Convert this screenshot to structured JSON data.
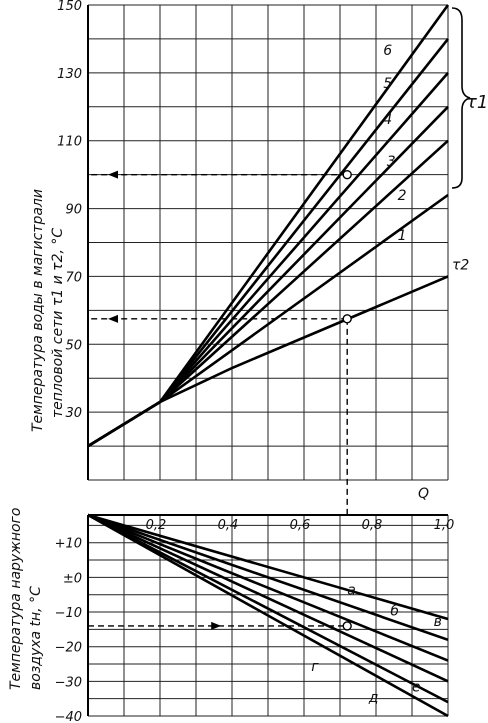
{
  "chart_data": [
    {
      "type": "line",
      "ylabel_line1": "Температура воды в магистрали",
      "ylabel_line2": "тепловой сети τ1 и τ2, °С",
      "xlim": [
        0,
        1.0
      ],
      "ylim": [
        10,
        150
      ],
      "yticks": [
        30,
        50,
        70,
        90,
        110,
        130,
        150
      ],
      "series": [
        {
          "name": "1",
          "x": [
            0,
            0.2,
            1.0
          ],
          "y": [
            20,
            33,
            94
          ]
        },
        {
          "name": "2",
          "x": [
            0,
            0.2,
            1.0
          ],
          "y": [
            20,
            33,
            110
          ]
        },
        {
          "name": "3",
          "x": [
            0,
            0.2,
            1.0
          ],
          "y": [
            20,
            33,
            120
          ]
        },
        {
          "name": "4",
          "x": [
            0,
            0.2,
            1.0
          ],
          "y": [
            20,
            33,
            130
          ]
        },
        {
          "name": "5",
          "x": [
            0,
            0.2,
            1.0
          ],
          "y": [
            20,
            33,
            140
          ]
        },
        {
          "name": "6",
          "x": [
            0,
            0.2,
            1.0
          ],
          "y": [
            20,
            33,
            150
          ]
        },
        {
          "name": "τ2",
          "x": [
            0,
            0.2,
            0.4,
            0.6,
            0.8,
            1.0
          ],
          "y": [
            20,
            33,
            43,
            52,
            61,
            70
          ]
        }
      ],
      "group_label": "τ1",
      "reference": {
        "x": 0.72,
        "y_tau1": 100,
        "y_tau2": 57.5
      }
    },
    {
      "type": "line",
      "ylabel_line1": "Температура наружного",
      "ylabel_line2": "воздуха tн, °С",
      "xlabel": "Q",
      "xlim": [
        0,
        1.0
      ],
      "ylim": [
        -40,
        18
      ],
      "xticks": [
        "0,2",
        "0,4",
        "0,6",
        "0,8",
        "1,0"
      ],
      "yticks": [
        "+10",
        "±0",
        "−10",
        "−20",
        "−30",
        "−40"
      ],
      "ytick_values": [
        10,
        0,
        -10,
        -20,
        -30,
        -40
      ],
      "series": [
        {
          "name": "а",
          "x": [
            0,
            1.0
          ],
          "y": [
            18,
            -12
          ]
        },
        {
          "name": "б",
          "x": [
            0,
            1.0
          ],
          "y": [
            18,
            -18
          ]
        },
        {
          "name": "в",
          "x": [
            0,
            1.0
          ],
          "y": [
            18,
            -24
          ]
        },
        {
          "name": "г",
          "x": [
            0,
            1.0
          ],
          "y": [
            18,
            -30
          ]
        },
        {
          "name": "д",
          "x": [
            0,
            1.0
          ],
          "y": [
            18,
            -36
          ]
        },
        {
          "name": "е",
          "x": [
            0,
            1.0
          ],
          "y": [
            18,
            -40
          ]
        }
      ],
      "reference": {
        "x": 0.72,
        "y": -14
      }
    }
  ]
}
